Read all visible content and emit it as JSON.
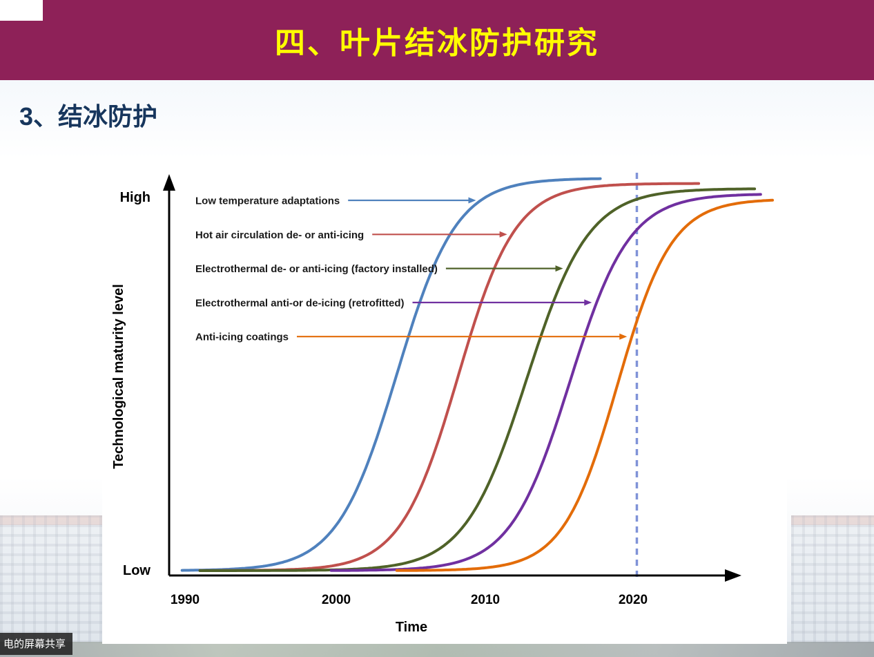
{
  "header": {
    "title": "四、叶片结冰防护研究"
  },
  "section": {
    "subtitle": "3、结冰防护"
  },
  "screen_share": {
    "label": "电的屏幕共享"
  },
  "chart_data": {
    "type": "line",
    "title": "",
    "xlabel": "Time",
    "ylabel": "Technological maturity level",
    "y_axis_high_label": "High",
    "y_axis_low_label": "Low",
    "x_ticks": [
      "1990",
      "2000",
      "2010",
      "2020"
    ],
    "x_range_years": [
      1989,
      2030
    ],
    "y_range": [
      "Low",
      "High"
    ],
    "grid": false,
    "legend_position": "upper-left labels with colored arrows pointing to curves",
    "reference_line": {
      "year": 2020.3,
      "style": "dashed",
      "color": "#8093d8"
    },
    "series": [
      {
        "name": "Low temperature adaptations",
        "color": "#4f81bd",
        "year_start": 1989.8,
        "year_end": 2017.9,
        "midpoint_year": 2004.2,
        "steepness": 0.5
      },
      {
        "name": "Hot air circulation de- or anti-icing",
        "color": "#c0504d",
        "year_start": 1991.0,
        "year_end": 2024.5,
        "midpoint_year": 2008.3,
        "steepness": 0.52
      },
      {
        "name": "Electrothermal de- or anti-icing (factory installed)",
        "color": "#4f6228",
        "year_start": 1991.0,
        "year_end": 2028.3,
        "midpoint_year": 2012.9,
        "steepness": 0.48
      },
      {
        "name": "Electrothermal anti-or de-icing (retrofitted)",
        "color": "#7030a0",
        "year_start": 1999.8,
        "year_end": 2028.6,
        "midpoint_year": 2015.8,
        "steepness": 0.5
      },
      {
        "name": "Anti-icing coatings",
        "color": "#e36c09",
        "year_start": 2004.2,
        "year_end": 2029.5,
        "midpoint_year": 2019.0,
        "steepness": 0.55
      }
    ]
  }
}
